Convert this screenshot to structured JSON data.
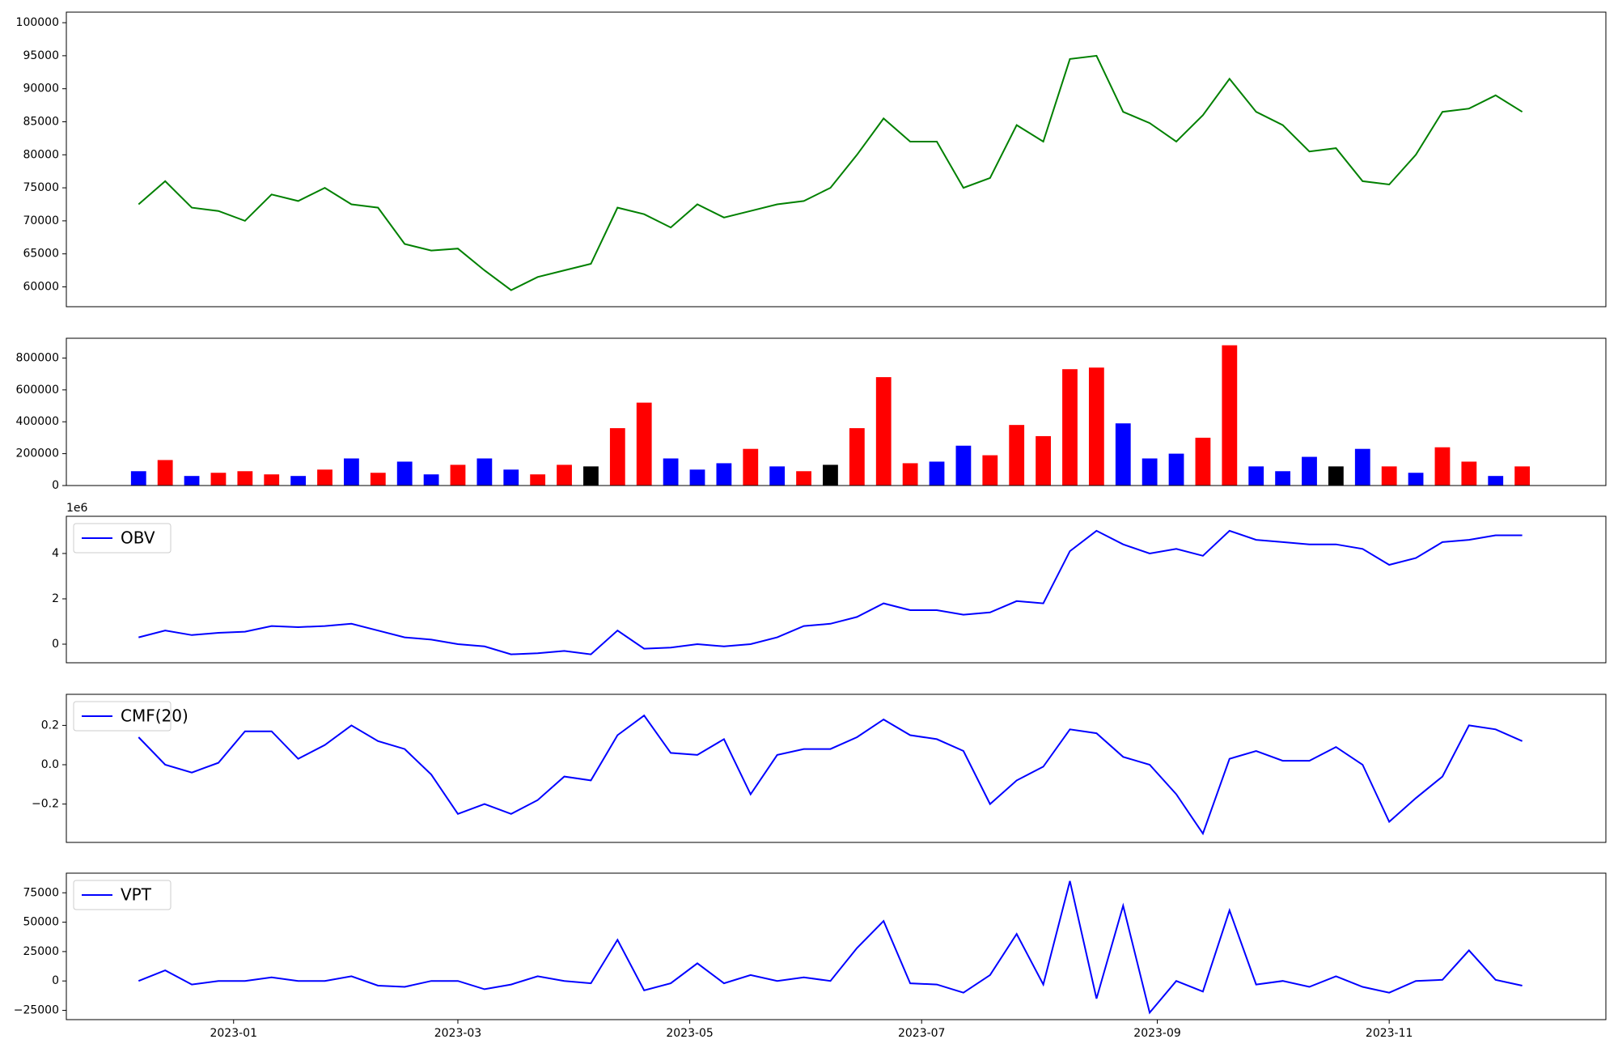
{
  "chart_data": [
    {
      "type": "line",
      "x": [
        -25,
        -18,
        -11,
        -4,
        3,
        10,
        17,
        24,
        31,
        38,
        45,
        52,
        59,
        66,
        73,
        80,
        87,
        94,
        101,
        108,
        115,
        122,
        129,
        136,
        143,
        150,
        157,
        164,
        171,
        178,
        185,
        192,
        199,
        206,
        213,
        220,
        227,
        234,
        241,
        248,
        255,
        262,
        269,
        276,
        283,
        290,
        297,
        304,
        311,
        318,
        325,
        332,
        339
      ],
      "values": [
        72500,
        76000,
        72000,
        71500,
        70000,
        74000,
        73000,
        75000,
        72500,
        72000,
        66500,
        65500,
        65800,
        62500,
        59500,
        61500,
        62500,
        63500,
        72000,
        71000,
        69000,
        72500,
        70500,
        71500,
        72500,
        73000,
        75000,
        80000,
        85500,
        82000,
        82000,
        75000,
        76500,
        84500,
        82000,
        94500,
        95000,
        86500,
        84800,
        82000,
        86000,
        91500,
        86500,
        84500,
        80500,
        81000,
        76000,
        75500,
        80000,
        86500,
        87000,
        89000,
        86500
      ],
      "color": "green",
      "xlim": [
        -44,
        361
      ],
      "ylim": [
        57000,
        101600
      ],
      "yticks": [
        60000,
        65000,
        70000,
        75000,
        80000,
        85000,
        90000,
        95000,
        100000
      ]
    },
    {
      "type": "bar",
      "x": [
        -25,
        -18,
        -11,
        -4,
        3,
        10,
        17,
        24,
        31,
        38,
        45,
        52,
        59,
        66,
        73,
        80,
        87,
        94,
        101,
        108,
        115,
        122,
        129,
        136,
        143,
        150,
        157,
        164,
        171,
        178,
        185,
        192,
        199,
        206,
        213,
        220,
        227,
        234,
        241,
        248,
        255,
        262,
        269,
        276,
        283,
        290,
        297,
        304,
        311,
        318,
        325,
        332,
        339
      ],
      "values": [
        90000,
        160000,
        60000,
        80000,
        90000,
        70000,
        60000,
        100000,
        170000,
        80000,
        150000,
        70000,
        130000,
        170000,
        100000,
        70000,
        130000,
        120000,
        360000,
        520000,
        170000,
        100000,
        140000,
        230000,
        120000,
        90000,
        130000,
        360000,
        680000,
        140000,
        150000,
        250000,
        190000,
        380000,
        310000,
        730000,
        740000,
        390000,
        170000,
        200000,
        300000,
        880000,
        120000,
        90000,
        180000,
        120000,
        230000,
        120000,
        80000,
        240000,
        150000,
        60000,
        120000
      ],
      "colors": [
        "blue",
        "red",
        "blue",
        "red",
        "red",
        "red",
        "blue",
        "red",
        "blue",
        "red",
        "blue",
        "blue",
        "red",
        "blue",
        "blue",
        "red",
        "red",
        "black",
        "red",
        "red",
        "blue",
        "blue",
        "blue",
        "red",
        "blue",
        "red",
        "black",
        "red",
        "red",
        "red",
        "blue",
        "blue",
        "red",
        "red",
        "red",
        "red",
        "red",
        "blue",
        "blue",
        "blue",
        "red",
        "red",
        "blue",
        "blue",
        "blue",
        "black",
        "blue",
        "red",
        "blue",
        "red",
        "red",
        "blue",
        "red"
      ],
      "xlim": [
        -44,
        361
      ],
      "ylim": [
        0,
        924000
      ],
      "yticks": [
        0,
        200000,
        400000,
        600000,
        800000
      ]
    },
    {
      "type": "line",
      "x": [
        -25,
        -18,
        -11,
        -4,
        3,
        10,
        17,
        24,
        31,
        38,
        45,
        52,
        59,
        66,
        73,
        80,
        87,
        94,
        101,
        108,
        115,
        122,
        129,
        136,
        143,
        150,
        157,
        164,
        171,
        178,
        185,
        192,
        199,
        206,
        213,
        220,
        227,
        234,
        241,
        248,
        255,
        262,
        269,
        276,
        283,
        290,
        297,
        304,
        311,
        318,
        325,
        332,
        339
      ],
      "series": [
        {
          "name": "OBV",
          "color": "blue",
          "values": [
            0.3,
            0.6,
            0.4,
            0.5,
            0.55,
            0.8,
            0.75,
            0.8,
            0.9,
            0.6,
            0.3,
            0.2,
            0.0,
            -0.1,
            -0.45,
            -0.4,
            -0.3,
            -0.45,
            0.6,
            -0.2,
            -0.15,
            0.0,
            -0.1,
            0.0,
            0.3,
            0.8,
            0.9,
            1.2,
            1.8,
            1.5,
            1.5,
            1.3,
            1.4,
            1.9,
            1.8,
            4.1,
            5.0,
            4.4,
            4.0,
            4.2,
            3.9,
            5.0,
            4.6,
            4.5,
            4.4,
            4.4,
            4.2,
            3.5,
            3.8,
            4.5,
            4.6,
            4.8,
            4.8
          ]
        }
      ],
      "legend": "upper left",
      "yscale_label": "1e6",
      "xlim": [
        -44,
        361
      ],
      "ylim": [
        -0.82,
        5.64
      ],
      "yticks": [
        0,
        2,
        4
      ]
    },
    {
      "type": "line",
      "x": [
        -25,
        -18,
        -11,
        -4,
        3,
        10,
        17,
        24,
        31,
        38,
        45,
        52,
        59,
        66,
        73,
        80,
        87,
        94,
        101,
        108,
        115,
        122,
        129,
        136,
        143,
        150,
        157,
        164,
        171,
        178,
        185,
        192,
        199,
        206,
        213,
        220,
        227,
        234,
        241,
        248,
        255,
        262,
        269,
        276,
        283,
        290,
        297,
        304,
        311,
        318,
        325,
        332,
        339
      ],
      "series": [
        {
          "name": "CMF(20)",
          "color": "blue",
          "values": [
            0.14,
            0.0,
            -0.04,
            0.01,
            0.17,
            0.17,
            0.03,
            0.1,
            0.2,
            0.12,
            0.08,
            -0.05,
            -0.25,
            -0.2,
            -0.25,
            -0.18,
            -0.06,
            -0.08,
            0.15,
            0.25,
            0.06,
            0.05,
            0.13,
            -0.15,
            0.05,
            0.08,
            0.08,
            0.14,
            0.23,
            0.15,
            0.13,
            0.07,
            -0.2,
            -0.08,
            -0.01,
            0.18,
            0.16,
            0.04,
            0.0,
            -0.15,
            -0.35,
            0.03,
            0.07,
            0.02,
            0.02,
            0.09,
            0.0,
            -0.29,
            -0.17,
            -0.06,
            0.2,
            0.18,
            0.12
          ]
        }
      ],
      "legend": "upper left",
      "xlim": [
        -44,
        361
      ],
      "ylim": [
        -0.395,
        0.358
      ],
      "yticks": [
        {
          "value": -0.2,
          "label": "−0.2"
        },
        {
          "value": 0,
          "label": "0.0"
        },
        0.2
      ]
    },
    {
      "type": "line",
      "x": [
        -25,
        -18,
        -11,
        -4,
        3,
        10,
        17,
        24,
        31,
        38,
        45,
        52,
        59,
        66,
        73,
        80,
        87,
        94,
        101,
        108,
        115,
        122,
        129,
        136,
        143,
        150,
        157,
        164,
        171,
        178,
        185,
        192,
        199,
        206,
        213,
        220,
        227,
        234,
        241,
        248,
        255,
        262,
        269,
        276,
        283,
        290,
        297,
        304,
        311,
        318,
        325,
        332,
        339
      ],
      "series": [
        {
          "name": "VPT",
          "color": "blue",
          "values": [
            0,
            9000,
            -3000,
            0,
            0,
            3000,
            0,
            0,
            4000,
            -4000,
            -5000,
            0,
            0,
            -7000,
            -3000,
            4000,
            0,
            -2000,
            35000,
            -8000,
            -2000,
            15000,
            -2000,
            5000,
            0,
            3000,
            0,
            28000,
            51000,
            -2000,
            -3000,
            -10000,
            5000,
            40000,
            -3000,
            85000,
            -15000,
            64000,
            -27000,
            0,
            -9000,
            60000,
            -3000,
            0,
            -5000,
            4000,
            -5000,
            -10000,
            0,
            1000,
            26000,
            1000,
            -4000
          ]
        }
      ],
      "legend": "upper left",
      "xlim": [
        -44,
        361
      ],
      "ylim": [
        -32900,
        91700
      ],
      "yticks": [
        {
          "value": -25000,
          "label": "−25000"
        },
        0,
        25000,
        50000,
        75000
      ],
      "xticks": [
        {
          "value": 0,
          "label": "2023-01"
        },
        {
          "value": 59,
          "label": "2023-03"
        },
        {
          "value": 120,
          "label": "2023-05"
        },
        {
          "value": 181,
          "label": "2023-07"
        },
        {
          "value": 243,
          "label": "2023-09"
        },
        {
          "value": 304,
          "label": "2023-11"
        }
      ]
    }
  ]
}
